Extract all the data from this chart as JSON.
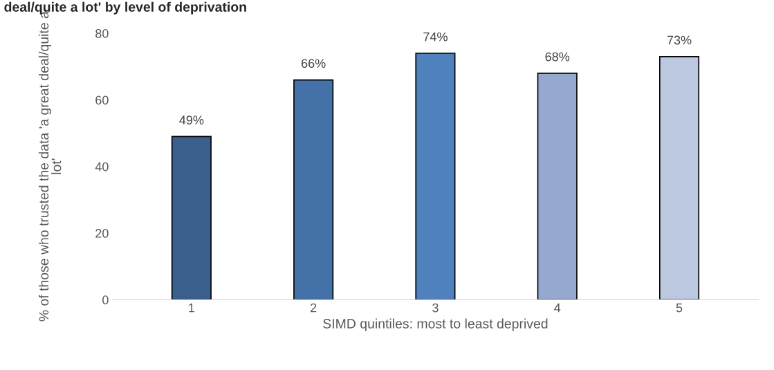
{
  "chart_data": {
    "type": "bar",
    "title": "deal/quite a lot' by level of deprivation",
    "xlabel": "SIMD quintiles: most to least deprived",
    "ylabel": "% of those who trusted the data 'a great deal/quite a lot'",
    "categories": [
      "1",
      "2",
      "3",
      "4",
      "5"
    ],
    "values": [
      49,
      66,
      74,
      68,
      73
    ],
    "colors": [
      "#3a5f8c",
      "#4472a8",
      "#4f81bd",
      "#95a9d0",
      "#bbc8e0"
    ],
    "value_labels": [
      "49%",
      "66%",
      "74%",
      "68%",
      "73%"
    ],
    "ylim": [
      0,
      80
    ],
    "yticks": [
      0,
      20,
      40,
      60,
      80
    ],
    "grid": false,
    "legend": false
  }
}
